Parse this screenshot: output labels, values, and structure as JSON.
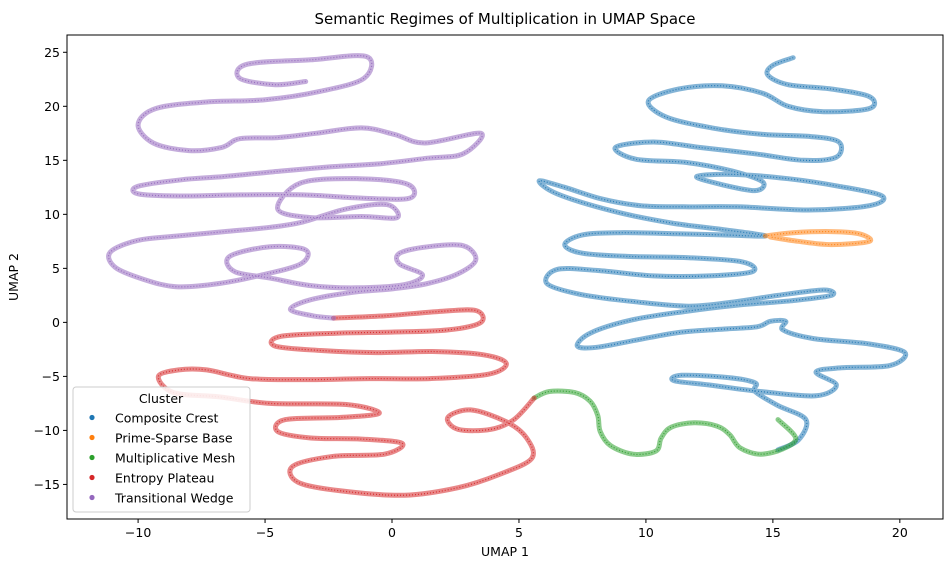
{
  "chart_data": {
    "type": "scatter",
    "title": "Semantic Regimes of Multiplication in UMAP Space",
    "xlabel": "UMAP 1",
    "ylabel": "UMAP 2",
    "xlim": [
      -12.8,
      21.7
    ],
    "ylim": [
      -18.2,
      26.6
    ],
    "xticks": [
      -10,
      -5,
      0,
      5,
      10,
      15,
      20
    ],
    "yticks": [
      -15,
      -10,
      -5,
      0,
      5,
      10,
      15,
      20,
      25
    ],
    "grid": false,
    "legend": {
      "title": "Cluster",
      "position": "lower-left"
    },
    "series": [
      {
        "name": "Composite Crest",
        "color": "#1f77b4",
        "points": [
          [
            15.8,
            24.5
          ],
          [
            15.0,
            23.8
          ],
          [
            14.8,
            22.9
          ],
          [
            15.6,
            22.0
          ],
          [
            17.3,
            21.6
          ],
          [
            18.8,
            20.9
          ],
          [
            18.8,
            19.8
          ],
          [
            17.0,
            19.5
          ],
          [
            15.6,
            20.0
          ],
          [
            14.6,
            21.2
          ],
          [
            13.0,
            21.9
          ],
          [
            11.3,
            21.6
          ],
          [
            10.1,
            20.5
          ],
          [
            10.8,
            19.0
          ],
          [
            12.6,
            18.0
          ],
          [
            14.6,
            17.4
          ],
          [
            16.5,
            17.2
          ],
          [
            17.6,
            16.7
          ],
          [
            17.5,
            15.3
          ],
          [
            16.2,
            15.0
          ],
          [
            14.3,
            15.6
          ],
          [
            12.1,
            16.2
          ],
          [
            10.3,
            16.7
          ],
          [
            8.8,
            16.2
          ],
          [
            9.6,
            15.1
          ],
          [
            11.6,
            14.8
          ],
          [
            13.4,
            14.0
          ],
          [
            14.6,
            13.0
          ],
          [
            14.3,
            12.2
          ],
          [
            12.9,
            12.8
          ],
          [
            12.0,
            13.5
          ],
          [
            13.4,
            13.7
          ],
          [
            15.6,
            13.3
          ],
          [
            17.6,
            12.6
          ],
          [
            19.3,
            11.7
          ],
          [
            18.8,
            10.8
          ],
          [
            16.4,
            10.4
          ],
          [
            13.6,
            10.7
          ],
          [
            11.5,
            10.7
          ],
          [
            9.8,
            10.8
          ],
          [
            8.3,
            11.4
          ],
          [
            6.8,
            12.5
          ],
          [
            5.8,
            13.1
          ],
          [
            6.5,
            11.9
          ],
          [
            8.7,
            10.3
          ],
          [
            11.0,
            9.2
          ],
          [
            13.0,
            8.6
          ],
          [
            14.7,
            8.0
          ],
          [
            13.0,
            8.1
          ],
          [
            11.2,
            8.2
          ],
          [
            9.0,
            8.3
          ],
          [
            7.5,
            8.1
          ],
          [
            6.8,
            7.2
          ],
          [
            7.5,
            6.4
          ],
          [
            9.4,
            6.1
          ],
          [
            11.6,
            6.0
          ],
          [
            13.8,
            5.6
          ],
          [
            14.2,
            4.7
          ],
          [
            12.5,
            4.3
          ],
          [
            10.3,
            4.3
          ],
          [
            8.1,
            4.8
          ],
          [
            6.5,
            4.9
          ],
          [
            6.1,
            3.6
          ],
          [
            7.4,
            2.6
          ],
          [
            9.6,
            1.9
          ],
          [
            11.7,
            1.5
          ],
          [
            13.5,
            1.9
          ],
          [
            15.2,
            2.5
          ],
          [
            17.0,
            3.0
          ],
          [
            17.3,
            2.5
          ],
          [
            15.7,
            2.0
          ],
          [
            13.6,
            1.6
          ],
          [
            11.5,
            1.0
          ],
          [
            9.4,
            0.2
          ],
          [
            7.8,
            -1.0
          ],
          [
            7.3,
            -2.2
          ],
          [
            8.1,
            -2.3
          ],
          [
            9.7,
            -1.6
          ],
          [
            11.4,
            -0.9
          ],
          [
            13.2,
            -0.6
          ],
          [
            14.4,
            -0.4
          ],
          [
            14.9,
            0.1
          ],
          [
            15.5,
            0.1
          ],
          [
            15.4,
            -0.7
          ],
          [
            16.6,
            -1.5
          ],
          [
            18.8,
            -2.0
          ],
          [
            20.2,
            -2.8
          ],
          [
            19.6,
            -4.0
          ],
          [
            17.7,
            -4.2
          ],
          [
            16.7,
            -4.6
          ],
          [
            17.5,
            -5.8
          ],
          [
            16.7,
            -6.8
          ],
          [
            14.5,
            -6.4
          ],
          [
            12.5,
            -5.8
          ],
          [
            11.1,
            -5.4
          ],
          [
            11.4,
            -4.9
          ],
          [
            13.2,
            -5.1
          ],
          [
            14.3,
            -5.6
          ],
          [
            14.3,
            -6.4
          ],
          [
            15.2,
            -7.7
          ],
          [
            16.3,
            -9.0
          ],
          [
            16.0,
            -10.9
          ],
          [
            15.2,
            -11.8
          ]
        ]
      },
      {
        "name": "Prime-Sparse Base",
        "color": "#ff7f0e",
        "points": [
          [
            14.7,
            8.0
          ],
          [
            15.8,
            8.3
          ],
          [
            17.3,
            8.4
          ],
          [
            18.4,
            8.2
          ],
          [
            18.8,
            7.5
          ],
          [
            17.3,
            7.2
          ],
          [
            16.0,
            7.5
          ],
          [
            14.9,
            7.9
          ]
        ]
      },
      {
        "name": "Multiplicative Mesh",
        "color": "#2ca02c",
        "points": [
          [
            5.6,
            -7.0
          ],
          [
            6.2,
            -6.4
          ],
          [
            7.2,
            -6.5
          ],
          [
            7.8,
            -7.3
          ],
          [
            8.1,
            -8.6
          ],
          [
            8.2,
            -10.1
          ],
          [
            8.6,
            -11.4
          ],
          [
            9.5,
            -12.2
          ],
          [
            10.4,
            -11.9
          ],
          [
            10.6,
            -10.7
          ],
          [
            11.0,
            -9.7
          ],
          [
            11.9,
            -9.3
          ],
          [
            12.8,
            -9.6
          ],
          [
            13.3,
            -10.4
          ],
          [
            13.7,
            -11.6
          ],
          [
            14.5,
            -12.2
          ],
          [
            15.4,
            -11.7
          ],
          [
            15.9,
            -10.7
          ],
          [
            15.2,
            -9.0
          ]
        ]
      },
      {
        "name": "Entropy Plateau",
        "color": "#d62728",
        "points": [
          [
            -2.3,
            0.4
          ],
          [
            -0.3,
            0.6
          ],
          [
            1.8,
            1.0
          ],
          [
            3.3,
            1.1
          ],
          [
            3.5,
            0.0
          ],
          [
            2.2,
            -0.7
          ],
          [
            0.0,
            -0.9
          ],
          [
            -2.2,
            -1.0
          ],
          [
            -4.4,
            -1.3
          ],
          [
            -4.6,
            -2.2
          ],
          [
            -2.8,
            -2.6
          ],
          [
            -0.6,
            -2.8
          ],
          [
            1.6,
            -2.7
          ],
          [
            3.6,
            -3.0
          ],
          [
            4.5,
            -3.8
          ],
          [
            3.8,
            -4.8
          ],
          [
            1.5,
            -5.2
          ],
          [
            -0.9,
            -5.2
          ],
          [
            -3.2,
            -5.3
          ],
          [
            -5.6,
            -5.2
          ],
          [
            -7.3,
            -4.4
          ],
          [
            -8.4,
            -4.4
          ],
          [
            -9.2,
            -5.0
          ],
          [
            -8.6,
            -6.5
          ],
          [
            -6.8,
            -6.9
          ],
          [
            -4.8,
            -7.5
          ],
          [
            -1.8,
            -7.6
          ],
          [
            -0.5,
            -8.4
          ],
          [
            -2.0,
            -8.8
          ],
          [
            -4.2,
            -9.0
          ],
          [
            -4.5,
            -10.1
          ],
          [
            -3.2,
            -10.7
          ],
          [
            -1.2,
            -10.8
          ],
          [
            0.4,
            -11.2
          ],
          [
            -0.3,
            -12.2
          ],
          [
            -2.3,
            -12.4
          ],
          [
            -3.9,
            -13.3
          ],
          [
            -3.7,
            -14.8
          ],
          [
            -2.0,
            -15.6
          ],
          [
            0.5,
            -16.0
          ],
          [
            2.6,
            -15.3
          ],
          [
            4.2,
            -14.1
          ],
          [
            5.5,
            -12.6
          ],
          [
            5.3,
            -10.7
          ],
          [
            4.5,
            -9.2
          ],
          [
            3.1,
            -8.1
          ],
          [
            2.2,
            -8.8
          ],
          [
            2.6,
            -9.9
          ],
          [
            3.9,
            -9.9
          ],
          [
            4.8,
            -9.0
          ],
          [
            5.6,
            -7.0
          ]
        ]
      },
      {
        "name": "Transitional Wedge",
        "color": "#9467bd",
        "points": [
          [
            -3.4,
            22.3
          ],
          [
            -4.6,
            22.0
          ],
          [
            -6.0,
            22.6
          ],
          [
            -5.7,
            23.9
          ],
          [
            -3.2,
            24.3
          ],
          [
            -1.0,
            24.6
          ],
          [
            -1.1,
            22.6
          ],
          [
            -2.8,
            21.4
          ],
          [
            -5.0,
            20.6
          ],
          [
            -7.3,
            20.4
          ],
          [
            -9.3,
            19.8
          ],
          [
            -10.0,
            18.3
          ],
          [
            -9.4,
            16.6
          ],
          [
            -8.0,
            15.9
          ],
          [
            -6.7,
            16.2
          ],
          [
            -6.0,
            17.0
          ],
          [
            -4.5,
            17.1
          ],
          [
            -3.0,
            17.5
          ],
          [
            -1.2,
            18.0
          ],
          [
            0.1,
            17.4
          ],
          [
            1.3,
            16.6
          ],
          [
            3.5,
            17.5
          ],
          [
            2.8,
            15.6
          ],
          [
            1.4,
            15.2
          ],
          [
            -0.4,
            14.7
          ],
          [
            -2.4,
            14.4
          ],
          [
            -4.4,
            14.0
          ],
          [
            -6.6,
            13.5
          ],
          [
            -8.3,
            13.2
          ],
          [
            -10.0,
            12.6
          ],
          [
            -10.0,
            11.9
          ],
          [
            -8.4,
            11.7
          ],
          [
            -6.0,
            11.8
          ],
          [
            -3.5,
            11.8
          ],
          [
            -1.2,
            11.5
          ],
          [
            0.7,
            11.5
          ],
          [
            0.6,
            12.8
          ],
          [
            -1.3,
            13.3
          ],
          [
            -3.6,
            12.9
          ],
          [
            -4.5,
            10.5
          ],
          [
            -3.2,
            9.7
          ],
          [
            -1.2,
            9.8
          ],
          [
            0.2,
            9.7
          ],
          [
            -0.2,
            10.9
          ],
          [
            -1.8,
            10.5
          ],
          [
            -3.5,
            9.3
          ],
          [
            -4.8,
            8.8
          ],
          [
            -6.6,
            8.4
          ],
          [
            -8.4,
            8.0
          ],
          [
            -10.0,
            7.6
          ],
          [
            -11.1,
            6.5
          ],
          [
            -10.9,
            5.1
          ],
          [
            -9.8,
            4.0
          ],
          [
            -8.5,
            3.3
          ],
          [
            -6.8,
            3.6
          ],
          [
            -5.1,
            4.4
          ],
          [
            -3.6,
            5.4
          ],
          [
            -3.4,
            6.7
          ],
          [
            -4.8,
            7.0
          ],
          [
            -6.4,
            6.1
          ],
          [
            -6.2,
            4.7
          ],
          [
            -4.8,
            4.1
          ],
          [
            -3.2,
            3.4
          ],
          [
            -1.4,
            3.2
          ],
          [
            0.5,
            3.5
          ],
          [
            1.2,
            4.4
          ],
          [
            0.3,
            5.4
          ],
          [
            0.3,
            6.4
          ],
          [
            1.4,
            7.0
          ],
          [
            2.8,
            7.1
          ],
          [
            3.3,
            5.8
          ],
          [
            2.6,
            4.5
          ],
          [
            1.4,
            3.6
          ],
          [
            0.0,
            3.1
          ],
          [
            -1.5,
            2.8
          ],
          [
            -3.2,
            2.1
          ],
          [
            -4.0,
            1.2
          ],
          [
            -3.1,
            0.6
          ],
          [
            -2.3,
            0.4
          ]
        ]
      }
    ]
  }
}
